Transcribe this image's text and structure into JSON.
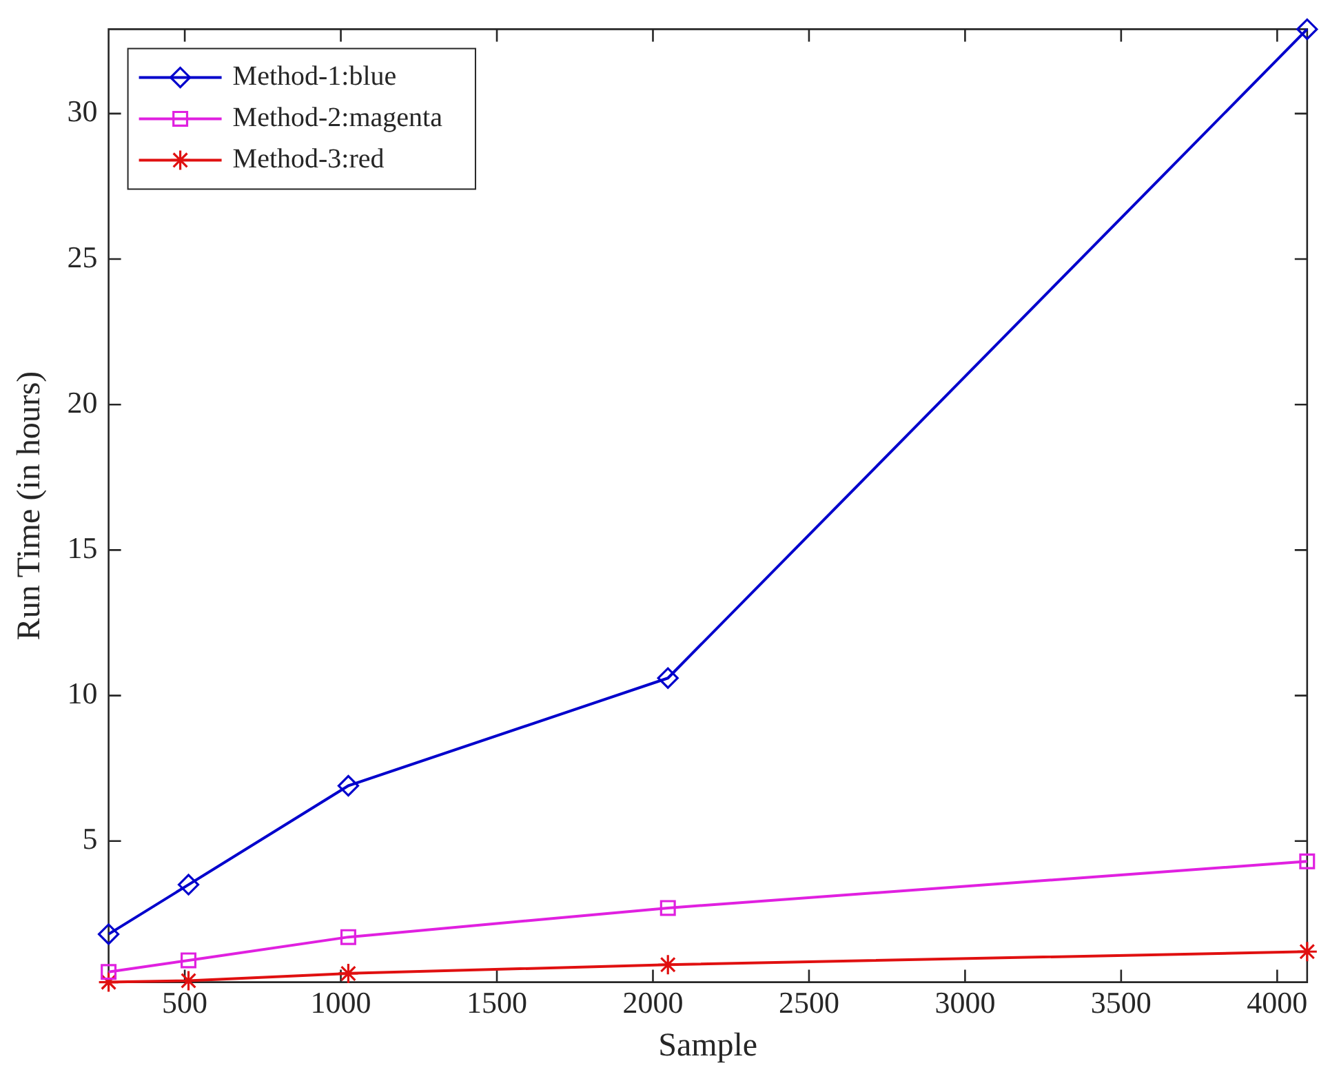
{
  "chart_data": {
    "type": "line",
    "xlabel": "Sample",
    "ylabel": "Run Time (in hours)",
    "x": [
      256,
      512,
      1024,
      2048,
      4096
    ],
    "series": [
      {
        "name": "Method-1:blue",
        "color": "#0000cc",
        "marker": "diamond",
        "values": [
          1.8,
          3.5,
          6.9,
          10.6,
          32.9
        ]
      },
      {
        "name": "Method-2:magenta",
        "color": "#e020e0",
        "marker": "square",
        "values": [
          0.5,
          0.9,
          1.7,
          2.7,
          4.3
        ]
      },
      {
        "name": "Method-3:red",
        "color": "#e01010",
        "marker": "cross",
        "values": [
          0.15,
          0.2,
          0.45,
          0.75,
          1.2
        ]
      }
    ],
    "xlim": [
      256,
      4096
    ],
    "xticks": [
      500,
      1000,
      1500,
      2000,
      2500,
      3000,
      3500,
      4000
    ],
    "ylim": [
      0.15,
      32.9
    ],
    "yticks": [
      5,
      10,
      15,
      20,
      25,
      30
    ],
    "grid": false,
    "legend": "top left",
    "line_style": "solid"
  }
}
